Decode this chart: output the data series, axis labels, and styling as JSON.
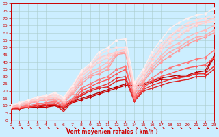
{
  "xlabel": "Vent moyen/en rafales ( km/h )",
  "background_color": "#cceeff",
  "grid_color": "#aacccc",
  "xlim": [
    0,
    23
  ],
  "ylim": [
    0,
    80
  ],
  "xticks": [
    0,
    1,
    2,
    3,
    4,
    5,
    6,
    7,
    8,
    9,
    10,
    11,
    12,
    13,
    14,
    15,
    16,
    17,
    18,
    19,
    20,
    21,
    22,
    23
  ],
  "yticks": [
    0,
    5,
    10,
    15,
    20,
    25,
    30,
    35,
    40,
    45,
    50,
    55,
    60,
    65,
    70,
    75,
    80
  ],
  "lines": [
    {
      "x": [
        0,
        1,
        2,
        3,
        4,
        5,
        6,
        7,
        8,
        9,
        10,
        11,
        12,
        13,
        14,
        15,
        16,
        17,
        18,
        19,
        20,
        21,
        22,
        23
      ],
      "y": [
        8,
        8,
        9,
        9,
        9,
        10,
        8,
        12,
        14,
        16,
        18,
        20,
        22,
        24,
        24,
        24,
        26,
        28,
        28,
        30,
        30,
        32,
        32,
        43
      ],
      "color": "#cc0000",
      "marker": "+",
      "markersize": 3,
      "linewidth": 1.0
    },
    {
      "x": [
        0,
        1,
        2,
        3,
        4,
        5,
        6,
        7,
        8,
        9,
        10,
        11,
        12,
        13,
        14,
        15,
        16,
        17,
        18,
        19,
        20,
        21,
        22,
        23
      ],
      "y": [
        8,
        8,
        9,
        9,
        10,
        10,
        9,
        13,
        15,
        17,
        19,
        21,
        23,
        25,
        25,
        25,
        27,
        29,
        30,
        31,
        31,
        33,
        34,
        44
      ],
      "color": "#bb0000",
      "marker": "+",
      "markersize": 3,
      "linewidth": 1.0
    },
    {
      "x": [
        0,
        1,
        2,
        3,
        4,
        5,
        6,
        7,
        8,
        9,
        10,
        11,
        12,
        13,
        14,
        15,
        16,
        17,
        18,
        19,
        20,
        21,
        22,
        23
      ],
      "y": [
        8,
        8,
        9,
        10,
        10,
        11,
        6,
        13,
        17,
        20,
        22,
        23,
        27,
        28,
        13,
        20,
        22,
        24,
        26,
        27,
        28,
        30,
        30,
        35
      ],
      "color": "#dd2222",
      "marker": "+",
      "markersize": 3,
      "linewidth": 1.0
    },
    {
      "x": [
        0,
        1,
        2,
        3,
        4,
        5,
        6,
        7,
        8,
        9,
        10,
        11,
        12,
        13,
        14,
        15,
        16,
        17,
        18,
        19,
        20,
        21,
        22,
        23
      ],
      "y": [
        8,
        9,
        9,
        10,
        11,
        11,
        9,
        14,
        18,
        21,
        23,
        25,
        29,
        30,
        14,
        21,
        24,
        26,
        28,
        29,
        30,
        32,
        32,
        37
      ],
      "color": "#ee3333",
      "marker": "+",
      "markersize": 3,
      "linewidth": 1.0
    },
    {
      "x": [
        0,
        1,
        2,
        3,
        4,
        5,
        6,
        7,
        8,
        9,
        10,
        11,
        12,
        13,
        14,
        15,
        16,
        17,
        18,
        19,
        20,
        21,
        22,
        23
      ],
      "y": [
        9,
        9,
        10,
        11,
        12,
        12,
        10,
        14,
        20,
        23,
        26,
        28,
        32,
        35,
        15,
        22,
        27,
        30,
        32,
        34,
        36,
        37,
        38,
        43
      ],
      "color": "#ff5555",
      "marker": "+",
      "markersize": 3,
      "linewidth": 1.0
    },
    {
      "x": [
        0,
        1,
        2,
        3,
        4,
        5,
        6,
        7,
        8,
        9,
        10,
        11,
        12,
        13,
        14,
        15,
        16,
        17,
        18,
        19,
        20,
        21,
        22,
        23
      ],
      "y": [
        9,
        9,
        10,
        11,
        12,
        13,
        11,
        15,
        22,
        25,
        28,
        30,
        35,
        37,
        16,
        24,
        29,
        33,
        36,
        38,
        40,
        42,
        43,
        48
      ],
      "color": "#ff7777",
      "marker": "D",
      "markersize": 2,
      "linewidth": 1.0
    },
    {
      "x": [
        0,
        1,
        2,
        3,
        4,
        5,
        6,
        7,
        8,
        9,
        10,
        11,
        12,
        13,
        14,
        15,
        16,
        17,
        18,
        19,
        20,
        21,
        22,
        23
      ],
      "y": [
        9,
        10,
        11,
        13,
        14,
        14,
        12,
        18,
        25,
        30,
        32,
        35,
        45,
        46,
        18,
        26,
        34,
        40,
        44,
        48,
        52,
        55,
        57,
        60
      ],
      "color": "#ff9999",
      "marker": "D",
      "markersize": 2,
      "linewidth": 1.0
    },
    {
      "x": [
        0,
        1,
        2,
        3,
        4,
        5,
        6,
        7,
        8,
        9,
        10,
        11,
        12,
        13,
        14,
        15,
        16,
        17,
        18,
        19,
        20,
        21,
        22,
        23
      ],
      "y": [
        9,
        10,
        12,
        13,
        14,
        15,
        13,
        19,
        27,
        31,
        34,
        37,
        46,
        47,
        20,
        27,
        36,
        42,
        47,
        50,
        54,
        57,
        58,
        62
      ],
      "color": "#ffaaaa",
      "marker": "D",
      "markersize": 2,
      "linewidth": 1.0
    },
    {
      "x": [
        0,
        1,
        2,
        3,
        4,
        5,
        6,
        7,
        8,
        9,
        10,
        11,
        12,
        13,
        14,
        15,
        16,
        17,
        18,
        19,
        20,
        21,
        22,
        23
      ],
      "y": [
        9,
        10,
        12,
        14,
        15,
        16,
        13,
        20,
        28,
        33,
        36,
        40,
        47,
        48,
        21,
        29,
        38,
        44,
        50,
        53,
        57,
        60,
        62,
        65
      ],
      "color": "#ffbbbb",
      "marker": "D",
      "markersize": 2,
      "linewidth": 1.0
    },
    {
      "x": [
        0,
        1,
        2,
        3,
        4,
        5,
        6,
        7,
        8,
        9,
        10,
        11,
        12,
        13,
        14,
        15,
        16,
        17,
        18,
        19,
        20,
        21,
        22,
        23
      ],
      "y": [
        10,
        11,
        13,
        14,
        15,
        16,
        14,
        21,
        30,
        35,
        40,
        43,
        47,
        48,
        22,
        30,
        40,
        48,
        53,
        57,
        62,
        65,
        67,
        68
      ],
      "color": "#ffcccc",
      "marker": "D",
      "markersize": 2,
      "linewidth": 1.0
    },
    {
      "x": [
        0,
        1,
        2,
        3,
        4,
        5,
        6,
        7,
        8,
        9,
        10,
        11,
        12,
        13,
        14,
        15,
        16,
        17,
        18,
        19,
        20,
        21,
        22,
        23
      ],
      "y": [
        10,
        11,
        13,
        15,
        16,
        17,
        14,
        22,
        31,
        36,
        42,
        44,
        47,
        48,
        23,
        30,
        40,
        49,
        55,
        59,
        63,
        66,
        67,
        68
      ],
      "color": "#ffdddd",
      "marker": "D",
      "markersize": 2,
      "linewidth": 1.0
    },
    {
      "x": [
        0,
        1,
        2,
        3,
        4,
        5,
        6,
        7,
        8,
        9,
        10,
        11,
        12,
        13,
        14,
        15,
        16,
        17,
        18,
        19,
        20,
        21,
        22,
        23
      ],
      "y": [
        10,
        11,
        13,
        15,
        16,
        18,
        15,
        23,
        32,
        37,
        43,
        45,
        47,
        49,
        24,
        32,
        42,
        50,
        57,
        62,
        65,
        67,
        68,
        70
      ],
      "color": "#ffcccc",
      "marker": "D",
      "markersize": 2,
      "linewidth": 1.0
    },
    {
      "x": [
        0,
        1,
        2,
        3,
        4,
        5,
        6,
        7,
        8,
        9,
        10,
        11,
        12,
        13,
        14,
        15,
        16,
        17,
        18,
        19,
        20,
        21,
        22,
        23
      ],
      "y": [
        10,
        12,
        14,
        16,
        17,
        18,
        15,
        24,
        33,
        38,
        45,
        48,
        50,
        50,
        25,
        33,
        45,
        52,
        58,
        63,
        67,
        69,
        70,
        72
      ],
      "color": "#ffdddd",
      "marker": "D",
      "markersize": 2,
      "linewidth": 1.0
    },
    {
      "x": [
        0,
        1,
        2,
        3,
        4,
        5,
        6,
        7,
        8,
        9,
        10,
        11,
        12,
        13,
        14,
        15,
        16,
        17,
        18,
        19,
        20,
        21,
        22,
        23
      ],
      "y": [
        10,
        12,
        14,
        16,
        17,
        19,
        16,
        24,
        34,
        39,
        47,
        50,
        55,
        56,
        26,
        35,
        47,
        55,
        63,
        67,
        70,
        72,
        73,
        77
      ],
      "color": "#ffeeee",
      "marker": "D",
      "markersize": 2,
      "linewidth": 1.0
    }
  ],
  "xlabel_color": "#cc0000",
  "tick_color": "#cc0000",
  "axis_line_color": "#cc0000"
}
